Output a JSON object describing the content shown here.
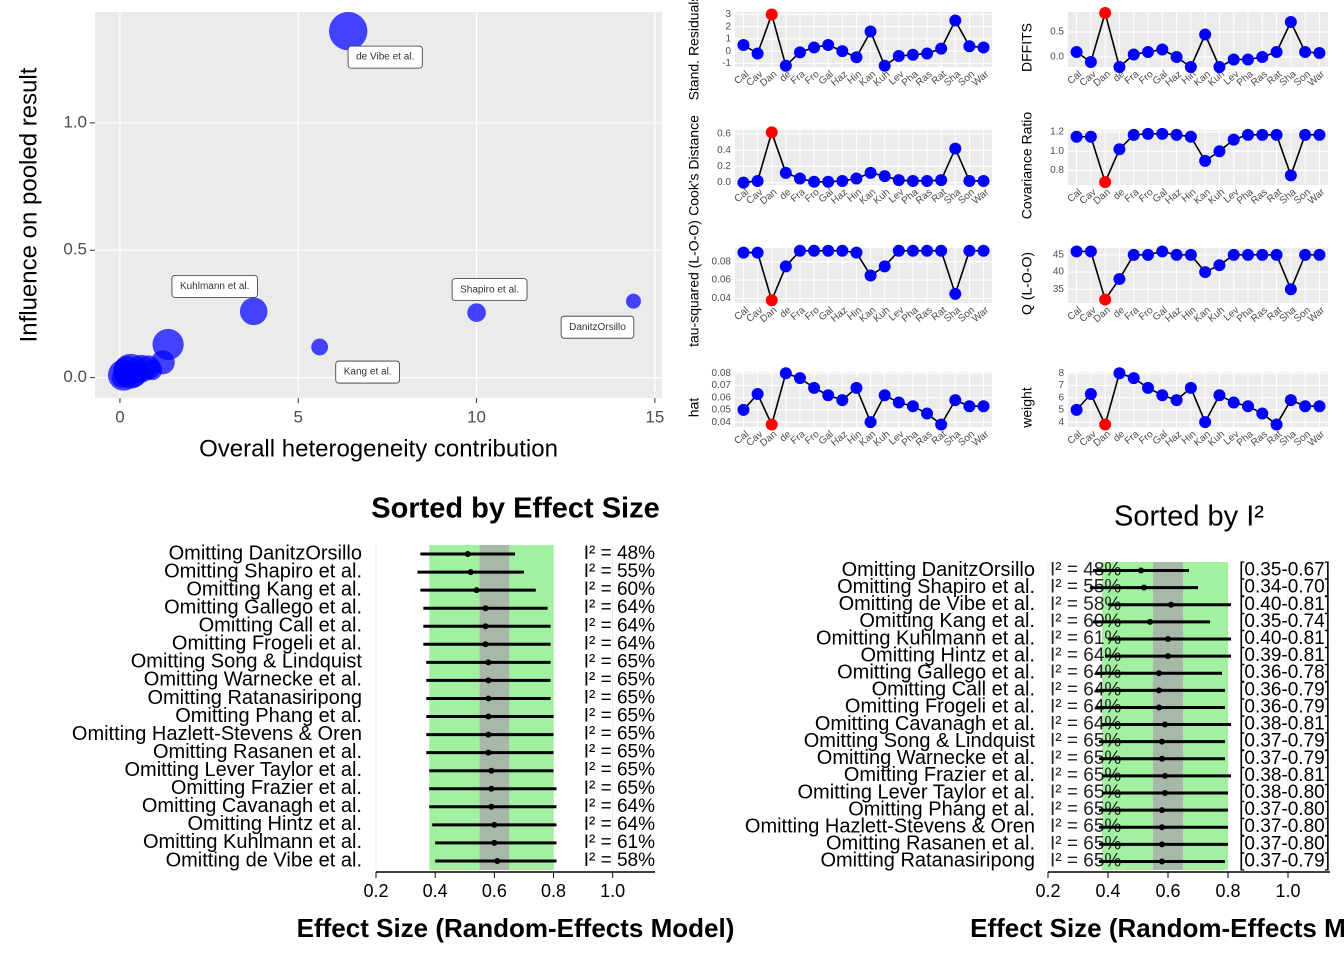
{
  "chart_data": [
    {
      "type": "scatter",
      "xlabel": "Overall heterogeneity contribution",
      "ylabel": "Influence on pooled result",
      "color": "blue",
      "grid": true,
      "x": [
        6.4,
        3.75,
        10.0,
        5.6,
        14.4,
        1.35,
        1.2,
        0.6,
        0.3,
        0.1,
        0.2,
        0.05,
        0.4,
        0.8,
        0.15,
        0.25,
        0.5,
        0.9
      ],
      "y": [
        1.36,
        0.26,
        0.255,
        0.12,
        0.3,
        0.13,
        0.06,
        0.035,
        0.025,
        0.01,
        0.03,
        0.0,
        0.01,
        0.04,
        0.005,
        0.015,
        0.02,
        0.03
      ],
      "sizes": [
        9,
        6,
        3.5,
        3,
        2.5,
        7,
        5,
        6,
        8,
        7,
        6,
        4,
        5,
        5,
        4,
        5,
        4,
        4
      ],
      "labels": [
        "de Vibe et al.",
        "Kuhlmann et al.",
        "Shapiro et al.",
        "Kang et al.",
        "DanitzOrsillo",
        null,
        null,
        null,
        null,
        null,
        null,
        null,
        null,
        null,
        null,
        null,
        null,
        null
      ],
      "xlim": [
        -0.7,
        15.2
      ],
      "ylim": [
        -0.08,
        1.435
      ],
      "xticks": [
        0,
        5,
        10,
        15
      ],
      "yticks": [
        {
          "value": 0,
          "label": "0.0"
        },
        0.5,
        {
          "value": 1,
          "label": "1.0"
        }
      ]
    },
    {
      "type": "line",
      "ylabel": "Stand. Residuals",
      "categories": [
        "Cal",
        "Cav",
        "Dan",
        "de",
        "Fra",
        "Fro",
        "Gal",
        "Haz",
        "Hin",
        "Kan",
        "Kuh",
        "Lev",
        "Pha",
        "Ras",
        "Rat",
        "Sha",
        "Son",
        "War"
      ],
      "values": [
        0.5,
        -0.2,
        3.0,
        -1.2,
        -0.1,
        0.3,
        0.5,
        0.0,
        -0.5,
        1.6,
        -1.2,
        -0.4,
        -0.3,
        -0.2,
        0.2,
        2.5,
        0.4,
        0.3
      ],
      "colors": [
        "blue",
        "blue",
        "red",
        "blue",
        "blue",
        "blue",
        "blue",
        "blue",
        "blue",
        "blue",
        "blue",
        "blue",
        "blue",
        "blue",
        "blue",
        "blue",
        "blue",
        "blue"
      ],
      "ylim": [
        -1.3,
        3.2
      ],
      "yticks": [
        -1,
        0,
        1,
        2,
        3
      ]
    },
    {
      "type": "line",
      "ylabel": "DFFITS",
      "categories": [
        "Cal",
        "Cav",
        "Dan",
        "de",
        "Fra",
        "Fro",
        "Gal",
        "Haz",
        "Hin",
        "Kan",
        "Kuh",
        "Lev",
        "Pha",
        "Ras",
        "Rat",
        "Sha",
        "Son",
        "War"
      ],
      "values": [
        0.1,
        -0.1,
        0.88,
        -0.2,
        0.05,
        0.1,
        0.15,
        0.0,
        -0.2,
        0.45,
        -0.2,
        -0.05,
        -0.05,
        0.0,
        0.1,
        0.7,
        0.1,
        0.08
      ],
      "colors": [
        "blue",
        "blue",
        "red",
        "blue",
        "blue",
        "blue",
        "blue",
        "blue",
        "blue",
        "blue",
        "blue",
        "blue",
        "blue",
        "blue",
        "blue",
        "blue",
        "blue",
        "blue"
      ],
      "ylim": [
        -0.2,
        0.9
      ],
      "yticks": [
        {
          "value": 0,
          "label": "0.0"
        },
        0.5
      ]
    },
    {
      "type": "line",
      "ylabel": "Cook's Distance",
      "categories": [
        "Cal",
        "Cav",
        "Dan",
        "de",
        "Fra",
        "Fro",
        "Gal",
        "Haz",
        "Hin",
        "Kan",
        "Kuh",
        "Lev",
        "Pha",
        "Ras",
        "Rat",
        "Sha",
        "Son",
        "War"
      ],
      "values": [
        0.0,
        0.02,
        0.62,
        0.12,
        0.05,
        0.01,
        0.01,
        0.02,
        0.05,
        0.12,
        0.08,
        0.03,
        0.02,
        0.02,
        0.03,
        0.42,
        0.02,
        0.02
      ],
      "colors": [
        "blue",
        "blue",
        "red",
        "blue",
        "blue",
        "blue",
        "blue",
        "blue",
        "blue",
        "blue",
        "blue",
        "blue",
        "blue",
        "blue",
        "blue",
        "blue",
        "blue",
        "blue"
      ],
      "ylim": [
        -0.03,
        0.65
      ],
      "yticks": [
        {
          "value": 0,
          "label": "0.0"
        },
        0.2,
        0.4,
        0.6
      ]
    },
    {
      "type": "line",
      "ylabel": "Covariance Ratio",
      "categories": [
        "Cal",
        "Cav",
        "Dan",
        "de",
        "Fra",
        "Fro",
        "Gal",
        "Haz",
        "Hin",
        "Kan",
        "Kuh",
        "Lev",
        "Pha",
        "Ras",
        "Rat",
        "Sha",
        "Son",
        "War"
      ],
      "values": [
        1.15,
        1.15,
        0.68,
        1.02,
        1.17,
        1.18,
        1.18,
        1.17,
        1.15,
        0.9,
        1.0,
        1.12,
        1.17,
        1.17,
        1.17,
        0.75,
        1.17,
        1.17
      ],
      "colors": [
        "blue",
        "blue",
        "red",
        "blue",
        "blue",
        "blue",
        "blue",
        "blue",
        "blue",
        "blue",
        "blue",
        "blue",
        "blue",
        "blue",
        "blue",
        "blue",
        "blue",
        "blue"
      ],
      "ylim": [
        0.65,
        1.22
      ],
      "yticks": [
        0.8,
        {
          "value": 1,
          "label": "1.0"
        },
        1.2
      ]
    },
    {
      "type": "line",
      "ylabel": "tau-squared (L-O-O)",
      "categories": [
        "Cal",
        "Cav",
        "Dan",
        "de",
        "Fra",
        "Fro",
        "Gal",
        "Haz",
        "Hin",
        "Kan",
        "Kuh",
        "Lev",
        "Pha",
        "Ras",
        "Rat",
        "Sha",
        "Son",
        "War"
      ],
      "values": [
        0.09,
        0.09,
        0.038,
        0.075,
        0.092,
        0.092,
        0.092,
        0.092,
        0.09,
        0.065,
        0.075,
        0.092,
        0.092,
        0.092,
        0.092,
        0.045,
        0.092,
        0.092
      ],
      "colors": [
        "blue",
        "blue",
        "red",
        "blue",
        "blue",
        "blue",
        "blue",
        "blue",
        "blue",
        "blue",
        "blue",
        "blue",
        "blue",
        "blue",
        "blue",
        "blue",
        "blue",
        "blue"
      ],
      "ylim": [
        0.035,
        0.095
      ],
      "yticks": [
        0.04,
        0.06,
        0.08
      ]
    },
    {
      "type": "line",
      "ylabel": "Q (L-O-O)",
      "categories": [
        "Cal",
        "Cav",
        "Dan",
        "de",
        "Fra",
        "Fro",
        "Gal",
        "Haz",
        "Hin",
        "Kan",
        "Kuh",
        "Lev",
        "Pha",
        "Ras",
        "Rat",
        "Sha",
        "Son",
        "War"
      ],
      "values": [
        46,
        46,
        32,
        38,
        45,
        45,
        46,
        45,
        45,
        40,
        42,
        45,
        45,
        45,
        45,
        35,
        45,
        45
      ],
      "colors": [
        "blue",
        "blue",
        "red",
        "blue",
        "blue",
        "blue",
        "blue",
        "blue",
        "blue",
        "blue",
        "blue",
        "blue",
        "blue",
        "blue",
        "blue",
        "blue",
        "blue",
        "blue"
      ],
      "ylim": [
        31,
        47
      ],
      "yticks": [
        35,
        40,
        45
      ]
    },
    {
      "type": "line",
      "ylabel": "hat",
      "categories": [
        "Cal",
        "Cav",
        "Dan",
        "de",
        "Fra",
        "Fro",
        "Gal",
        "Haz",
        "Hin",
        "Kan",
        "Kuh",
        "Lev",
        "Pha",
        "Ras",
        "Rat",
        "Sha",
        "Son",
        "War"
      ],
      "values": [
        0.05,
        0.063,
        0.038,
        0.08,
        0.076,
        0.068,
        0.062,
        0.058,
        0.068,
        0.04,
        0.062,
        0.056,
        0.053,
        0.047,
        0.038,
        0.058,
        0.053,
        0.053
      ],
      "colors": [
        "blue",
        "blue",
        "red",
        "blue",
        "blue",
        "blue",
        "blue",
        "blue",
        "blue",
        "blue",
        "blue",
        "blue",
        "blue",
        "blue",
        "blue",
        "blue",
        "blue",
        "blue"
      ],
      "ylim": [
        0.036,
        0.081
      ],
      "yticks": [
        0.04,
        0.05,
        0.06,
        0.07,
        0.08
      ]
    },
    {
      "type": "line",
      "ylabel": "weight",
      "categories": [
        "Cal",
        "Cav",
        "Dan",
        "de",
        "Fra",
        "Fro",
        "Gal",
        "Haz",
        "Hin",
        "Kan",
        "Kuh",
        "Lev",
        "Pha",
        "Ras",
        "Rat",
        "Sha",
        "Son",
        "War"
      ],
      "values": [
        5.0,
        6.3,
        3.8,
        8.0,
        7.6,
        6.8,
        6.2,
        5.8,
        6.8,
        4.0,
        6.2,
        5.6,
        5.3,
        4.7,
        3.8,
        5.8,
        5.3,
        5.3
      ],
      "colors": [
        "blue",
        "blue",
        "red",
        "blue",
        "blue",
        "blue",
        "blue",
        "blue",
        "blue",
        "blue",
        "blue",
        "blue",
        "blue",
        "blue",
        "blue",
        "blue",
        "blue",
        "blue"
      ],
      "ylim": [
        3.6,
        8.1
      ],
      "yticks": [
        4,
        5,
        6,
        7,
        8
      ]
    },
    {
      "type": "forest",
      "title": "Sorted by Effect Size",
      "xlabel": "Effect Size (Random-Effects Model)",
      "labels": [
        "Omitting DanitzOrsillo",
        "Omitting Shapiro et al.",
        "Omitting Kang et al.",
        "Omitting Gallego et al.",
        "Omitting Call et al.",
        "Omitting Frogeli et al.",
        "Omitting Song & Lindquist",
        "Omitting Warnecke et al.",
        "Omitting Ratanasiripong",
        "Omitting Phang et al.",
        "Omitting Hazlett-Stevens & Oren",
        "Omitting Rasanen et al.",
        "Omitting Lever Taylor et al.",
        "Omitting Frazier et al.",
        "Omitting Cavanagh et al.",
        "Omitting Hintz et al.",
        "Omitting Kuhlmann et al.",
        "Omitting de Vibe et al."
      ],
      "estimates": [
        0.51,
        0.52,
        0.54,
        0.57,
        0.57,
        0.57,
        0.58,
        0.58,
        0.58,
        0.58,
        0.58,
        0.58,
        0.59,
        0.59,
        0.59,
        0.6,
        0.6,
        0.61
      ],
      "ci_lower": [
        0.35,
        0.34,
        0.35,
        0.36,
        0.36,
        0.36,
        0.37,
        0.37,
        0.37,
        0.37,
        0.37,
        0.37,
        0.38,
        0.38,
        0.38,
        0.39,
        0.4,
        0.4
      ],
      "ci_upper": [
        0.67,
        0.7,
        0.74,
        0.78,
        0.79,
        0.79,
        0.79,
        0.79,
        0.79,
        0.8,
        0.8,
        0.8,
        0.8,
        0.81,
        0.81,
        0.81,
        0.81,
        0.81
      ],
      "i2_labels": [
        "I² = 48%",
        "I² = 55%",
        "I² = 60%",
        "I² = 64%",
        "I² = 64%",
        "I² = 64%",
        "I² = 65%",
        "I² = 65%",
        "I² = 65%",
        "I² = 65%",
        "I² = 65%",
        "I² = 65%",
        "I² = 65%",
        "I² = 65%",
        "I² = 64%",
        "I² = 64%",
        "I² = 61%",
        "I² = 58%"
      ],
      "shaded_ranges": [
        [
          0.38,
          0.8
        ],
        [
          0.55,
          0.65
        ]
      ],
      "band_colors": [
        "#90ee90",
        "#aaaaaa"
      ],
      "xlim": [
        0.2,
        1.143
      ],
      "xticks": [
        0.2,
        0.4,
        0.6,
        0.8,
        {
          "value": 1,
          "label": "1.0"
        }
      ]
    },
    {
      "type": "forest",
      "title": "Sorted by I²",
      "xlabel": "Effect Size (Random-Effects Model)",
      "labels": [
        "Omitting DanitzOrsillo",
        "Omitting Shapiro et al.",
        "Omitting de Vibe et al.",
        "Omitting Kang et al.",
        "Omitting Kuhlmann et al.",
        "Omitting Hintz et al.",
        "Omitting Gallego et al.",
        "Omitting Call et al.",
        "Omitting Frogeli et al.",
        "Omitting Cavanagh et al.",
        "Omitting Song & Lindquist",
        "Omitting Warnecke et al.",
        "Omitting Frazier et al.",
        "Omitting Lever Taylor et al.",
        "Omitting Phang et al.",
        "Omitting Hazlett-Stevens & Oren",
        "Omitting Rasanen et al.",
        "Omitting Ratanasiripong"
      ],
      "estimates": [
        0.51,
        0.52,
        0.61,
        0.54,
        0.6,
        0.6,
        0.57,
        0.57,
        0.57,
        0.59,
        0.58,
        0.58,
        0.59,
        0.59,
        0.58,
        0.58,
        0.58,
        0.58
      ],
      "ci_lower": [
        0.35,
        0.34,
        0.4,
        0.35,
        0.4,
        0.39,
        0.36,
        0.36,
        0.36,
        0.38,
        0.37,
        0.37,
        0.38,
        0.38,
        0.37,
        0.37,
        0.37,
        0.37
      ],
      "ci_upper": [
        0.67,
        0.7,
        0.81,
        0.74,
        0.81,
        0.81,
        0.78,
        0.79,
        0.79,
        0.81,
        0.79,
        0.79,
        0.81,
        0.8,
        0.8,
        0.8,
        0.8,
        0.79
      ],
      "ci_labels": [
        "[0.35-0.67]",
        "[0.34-0.70]",
        "[0.40-0.81]",
        "[0.35-0.74]",
        "[0.40-0.81]",
        "[0.39-0.81]",
        "[0.36-0.78]",
        "[0.36-0.79]",
        "[0.36-0.79]",
        "[0.38-0.81]",
        "[0.37-0.79]",
        "[0.37-0.79]",
        "[0.38-0.81]",
        "[0.38-0.80]",
        "[0.37-0.80]",
        "[0.37-0.80]",
        "[0.37-0.80]",
        "[0.37-0.79]"
      ],
      "i2_labels": [
        "I² = 48%",
        "I² = 55%",
        "I² = 58%",
        "I² = 60%",
        "I² = 61%",
        "I² = 64%",
        "I² = 64%",
        "I² = 64%",
        "I² = 64%",
        "I² = 64%",
        "I² = 65%",
        "I² = 65%",
        "I² = 65%",
        "I² = 65%",
        "I² = 65%",
        "I² = 65%",
        "I² = 65%",
        "I² = 65%"
      ],
      "shaded_ranges": [
        [
          0.38,
          0.8
        ],
        [
          0.55,
          0.65
        ]
      ],
      "band_colors": [
        "#90ee90",
        "#aaaaaa"
      ],
      "xlim": [
        0.2,
        1.14
      ],
      "xticks": [
        0.2,
        0.4,
        0.6,
        0.8,
        {
          "value": 1,
          "label": "1.0"
        }
      ]
    }
  ]
}
